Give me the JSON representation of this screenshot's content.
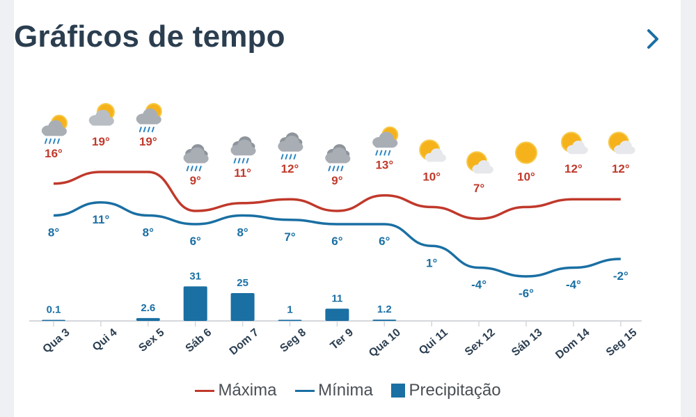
{
  "header": {
    "title": "Gráficos de tempo"
  },
  "colors": {
    "max": "#c0392b",
    "min": "#1a6fa3",
    "precip": "#1a6fa3",
    "title": "#2b3e50"
  },
  "chart_data": {
    "type": "line",
    "categories": [
      "Qua 3",
      "Qui 4",
      "Sex 5",
      "Sáb 6",
      "Dom 7",
      "Seg 8",
      "Ter 9",
      "Qua 10",
      "Qui 11",
      "Sex 12",
      "Sáb 13",
      "Dom 14",
      "Seg 15"
    ],
    "icons": [
      "sun-cloud-rain-icon",
      "sun-cloud-icon",
      "sun-cloud-rain-icon",
      "rain-cloud-icon",
      "rain-cloud-icon",
      "rain-cloud-icon",
      "rain-cloud-icon",
      "sun-cloud-rain-icon",
      "partly-sunny-icon",
      "partly-sunny-icon",
      "sun-icon",
      "partly-sunny-icon",
      "partly-sunny-icon"
    ],
    "series": [
      {
        "name": "Máxima",
        "values": [
          16,
          19,
          19,
          9,
          11,
          12,
          9,
          13,
          10,
          7,
          10,
          12,
          12
        ],
        "labels": [
          "16°",
          "19°",
          "19°",
          "9°",
          "11°",
          "12°",
          "9°",
          "13°",
          "10°",
          "7°",
          "10°",
          "12°",
          "12°"
        ]
      },
      {
        "name": "Mínima",
        "values": [
          8,
          11,
          8,
          6,
          8,
          7,
          6,
          6,
          1,
          -4,
          -6,
          -4,
          -2
        ],
        "labels": [
          "8°",
          "11°",
          "8°",
          "6°",
          "8°",
          "7°",
          "6°",
          "6°",
          "1°",
          "-4°",
          "-6°",
          "-4°",
          "-2°"
        ]
      },
      {
        "name": "Precipitação",
        "type": "bar",
        "values": [
          0.1,
          0,
          2.6,
          31,
          25,
          1,
          11,
          1.2,
          0,
          0,
          0,
          0,
          0
        ],
        "labels": [
          "0.1",
          "",
          "2.6",
          "31",
          "25",
          "1",
          "11",
          "1.2",
          "",
          "",
          "",
          "",
          ""
        ]
      }
    ],
    "legend": [
      "Máxima",
      "Mínima",
      "Precipitação"
    ],
    "legend_position": "bottom"
  }
}
